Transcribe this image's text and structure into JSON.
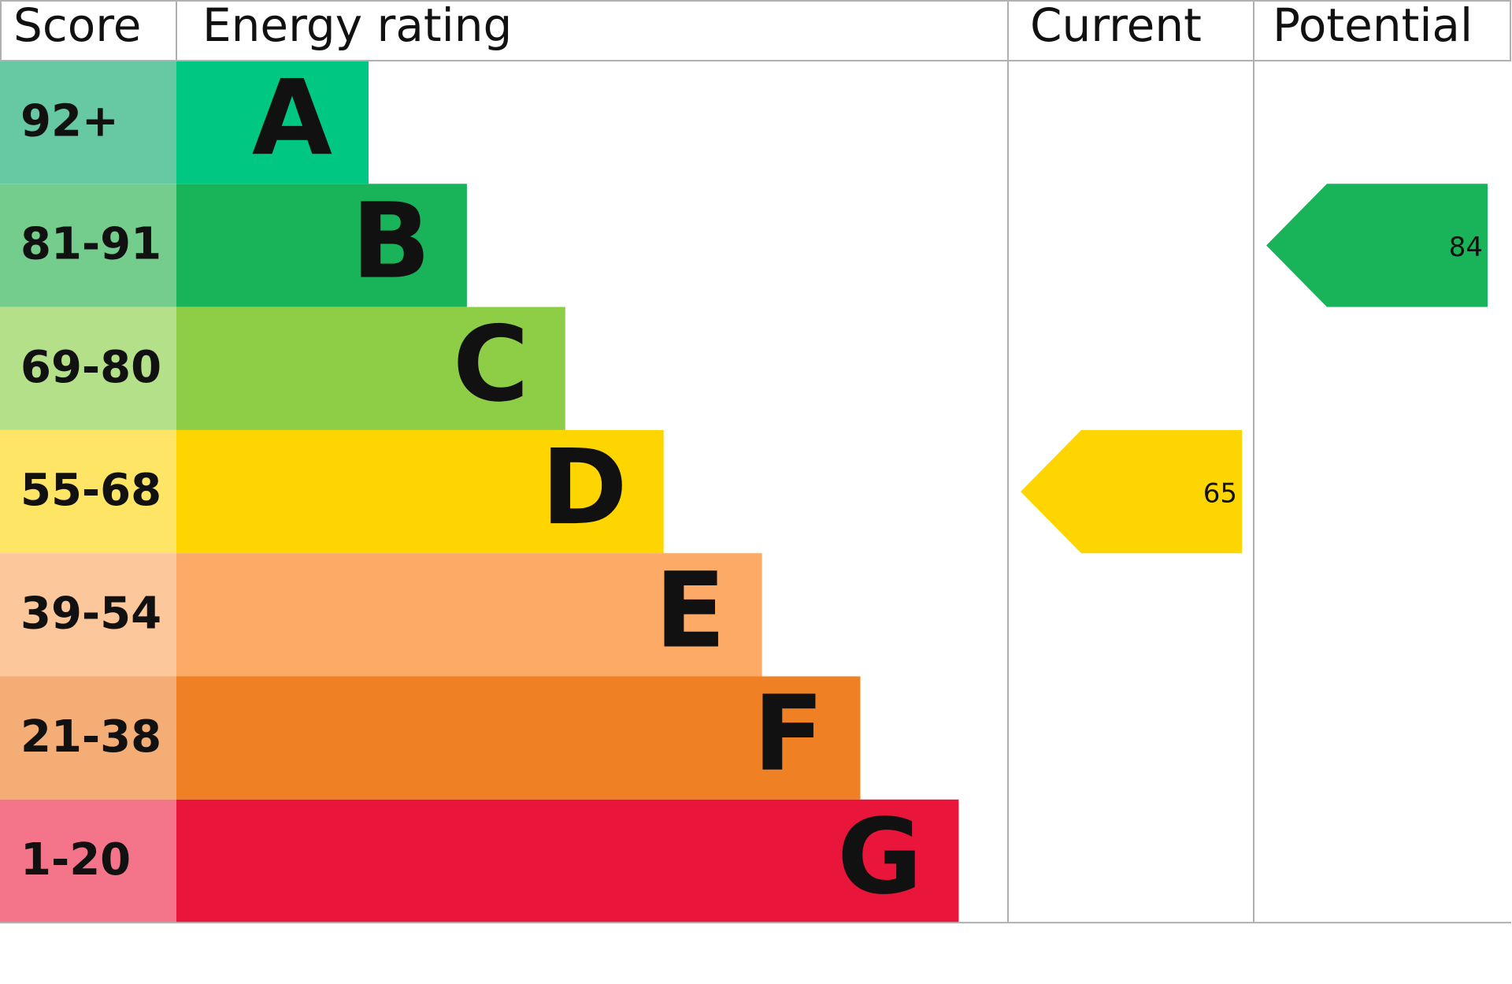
{
  "header": {
    "score": "Score",
    "rating": "Energy rating",
    "current": "Current",
    "potential": "Potential"
  },
  "bands": [
    {
      "score": "92+",
      "letter": "A",
      "score_color": "#66c9a4",
      "color": "#00c781"
    },
    {
      "score": "81-91",
      "letter": "B",
      "score_color": "#75cd8d",
      "color": "#19b459"
    },
    {
      "score": "69-80",
      "letter": "C",
      "score_color": "#b4e08a",
      "color": "#8dce46"
    },
    {
      "score": "55-68",
      "letter": "D",
      "score_color": "#ffe566",
      "color": "#ffd500"
    },
    {
      "score": "39-54",
      "letter": "E",
      "score_color": "#fdc79c",
      "color": "#fcaa65"
    },
    {
      "score": "21-38",
      "letter": "F",
      "score_color": "#f4ad74",
      "color": "#ef8023"
    },
    {
      "score": "1-20",
      "letter": "G",
      "score_color": "#f4758a",
      "color": "#e9153b"
    }
  ],
  "current": {
    "value": 65
  },
  "potential": {
    "value": 84
  }
}
